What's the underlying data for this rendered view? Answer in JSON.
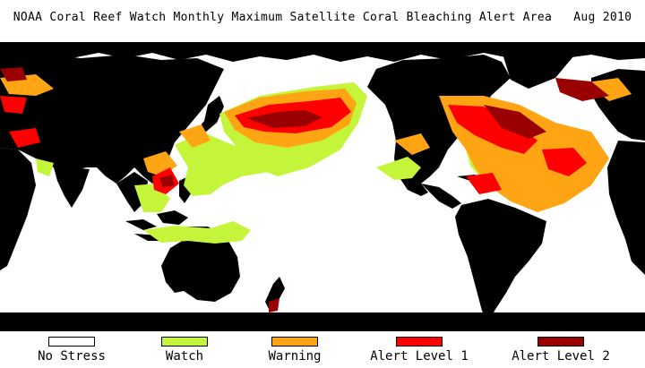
{
  "title": {
    "text": "NOAA Coral Reef Watch Monthly Maximum Satellite Coral Bleaching Alert Area",
    "date": "Aug 2010"
  },
  "colors": {
    "land": "#000000",
    "no_stress": "#ffffff",
    "watch": "#c5f53b",
    "warning": "#ffa514",
    "alert1": "#ff0000",
    "alert2": "#9b0000"
  },
  "legend": [
    {
      "label": "No Stress",
      "color": "#ffffff"
    },
    {
      "label": "Watch",
      "color": "#c5f53b"
    },
    {
      "label": "Warning",
      "color": "#ffa514"
    },
    {
      "label": "Alert Level 1",
      "color": "#ff0000"
    },
    {
      "label": "Alert Level 2",
      "color": "#9b0000"
    }
  ]
}
